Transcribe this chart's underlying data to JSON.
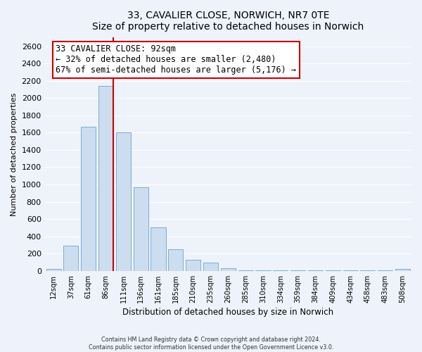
{
  "title": "33, CAVALIER CLOSE, NORWICH, NR7 0TE",
  "subtitle": "Size of property relative to detached houses in Norwich",
  "xlabel": "Distribution of detached houses by size in Norwich",
  "ylabel": "Number of detached properties",
  "bar_labels": [
    "12sqm",
    "37sqm",
    "61sqm",
    "86sqm",
    "111sqm",
    "136sqm",
    "161sqm",
    "185sqm",
    "210sqm",
    "235sqm",
    "260sqm",
    "285sqm",
    "310sqm",
    "334sqm",
    "359sqm",
    "384sqm",
    "409sqm",
    "434sqm",
    "458sqm",
    "483sqm",
    "508sqm"
  ],
  "bar_values": [
    20,
    295,
    1670,
    2140,
    1600,
    970,
    505,
    255,
    125,
    95,
    35,
    5,
    5,
    5,
    5,
    5,
    5,
    5,
    5,
    5,
    20
  ],
  "bar_color": "#ccddf0",
  "bar_edge_color": "#7aadd4",
  "vline_color": "#cc0000",
  "annotation_text": "33 CAVALIER CLOSE: 92sqm\n← 32% of detached houses are smaller (2,480)\n67% of semi-detached houses are larger (5,176) →",
  "annotation_box_color": "white",
  "annotation_box_edge": "#cc0000",
  "ylim": [
    0,
    2700
  ],
  "yticks": [
    0,
    200,
    400,
    600,
    800,
    1000,
    1200,
    1400,
    1600,
    1800,
    2000,
    2200,
    2400,
    2600
  ],
  "footer_line1": "Contains HM Land Registry data © Crown copyright and database right 2024.",
  "footer_line2": "Contains public sector information licensed under the Open Government Licence v3.0.",
  "background_color": "#eef2fa",
  "grid_color": "white"
}
